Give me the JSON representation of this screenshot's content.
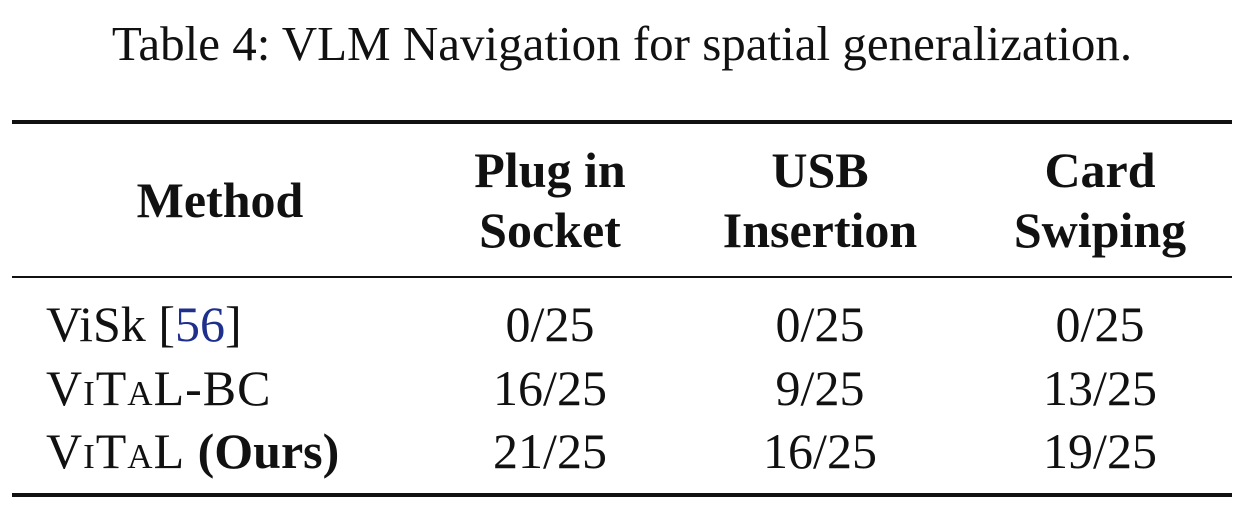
{
  "caption": "Table 4: VLM Navigation for spatial generalization.",
  "table": {
    "headers": {
      "method": "Method",
      "col1": [
        "Plug in",
        "Socket"
      ],
      "col2": [
        "USB",
        "Insertion"
      ],
      "col3": [
        "Card",
        "Swiping"
      ]
    },
    "rows": [
      {
        "method": "ViSk",
        "citation_open": " [",
        "citation": "56",
        "citation_close": "]",
        "plug_in_socket": "0/25",
        "usb_insertion": "0/25",
        "card_swiping": "0/25"
      },
      {
        "method": "ViTaL-BC",
        "plug_in_socket": "16/25",
        "usb_insertion": "9/25",
        "card_swiping": "13/25"
      },
      {
        "method": "ViTaL",
        "method_suffix": "(Ours)",
        "plug_in_socket": "21/25",
        "usb_insertion": "16/25",
        "card_swiping": "19/25"
      }
    ]
  }
}
